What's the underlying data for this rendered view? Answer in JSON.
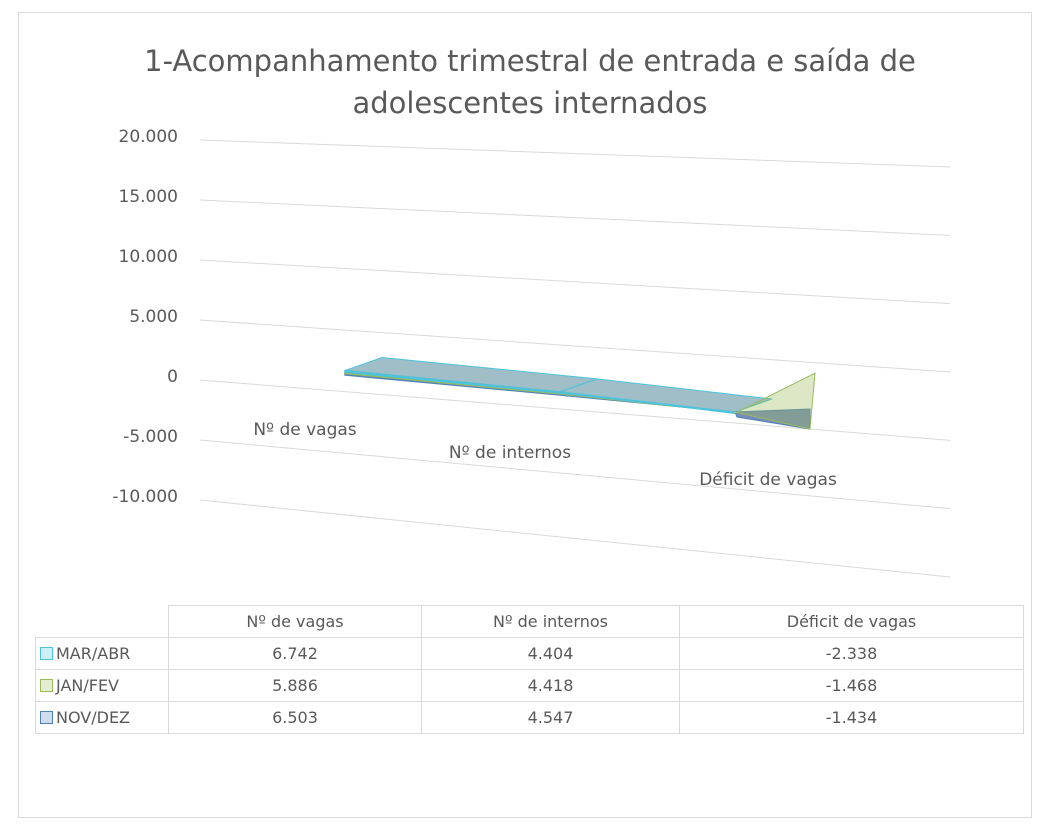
{
  "chart_data": {
    "type": "area",
    "stacked": true,
    "three_d": true,
    "title": "1-Acompanhamento trimestral de entrada e saída de adolescentes internados",
    "categories": [
      "Nº de vagas",
      "Nº de internos",
      "Déficit de vagas"
    ],
    "series": [
      {
        "name": "MAR/ABR",
        "color": "#4cc3dc",
        "values": [
          6742,
          4404,
          -2338
        ],
        "value_labels": [
          "6.742",
          "4.404",
          "-2.338"
        ]
      },
      {
        "name": "JAN/FEV",
        "color": "#9bbb59",
        "values": [
          5886,
          4418,
          -1468
        ],
        "value_labels": [
          "5.886",
          "4.418",
          "-1.468"
        ]
      },
      {
        "name": "NOV/DEZ",
        "color": "#4f81bd",
        "values": [
          6503,
          4547,
          -1434
        ],
        "value_labels": [
          "6.503",
          "4.547",
          "-1.434"
        ]
      }
    ],
    "ylim": [
      -10000,
      20000
    ],
    "yticks": [
      {
        "value": 20000,
        "label": "20.000"
      },
      {
        "value": 15000,
        "label": "15.000"
      },
      {
        "value": 10000,
        "label": "10.000"
      },
      {
        "value": 5000,
        "label": "5.000"
      },
      0,
      {
        "value": -5000,
        "label": "-5.000"
      },
      {
        "value": -10000,
        "label": "-10.000"
      }
    ],
    "grid": true,
    "data_table": true
  }
}
